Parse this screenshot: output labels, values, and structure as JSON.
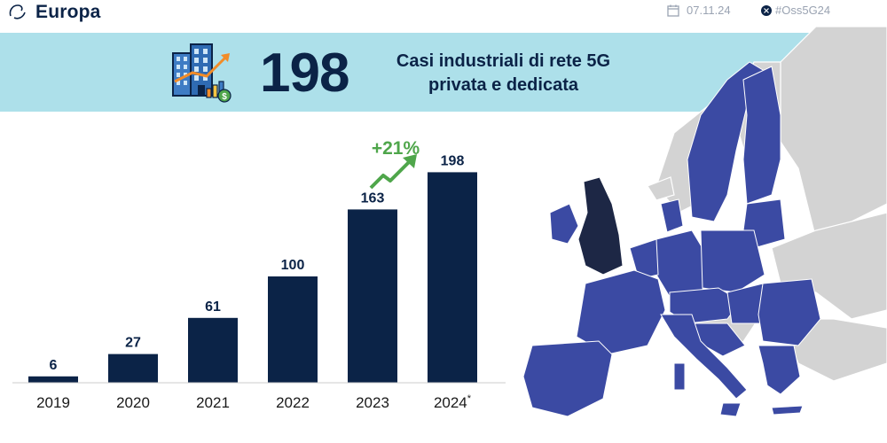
{
  "header": {
    "title": "Europa",
    "date": "07.11.24",
    "hashtag": "#Oss5G24"
  },
  "banner": {
    "number": "198",
    "line1": "Casi industriali di rete 5G",
    "line2": "privata e dedicata"
  },
  "colors": {
    "navy": "#0b2347",
    "banner_bg": "#ade0ea",
    "growth_green": "#4fa64b",
    "eu_blue": "#3b4aa3",
    "uk_navy": "#1d2745",
    "land_grey": "#d3d3d3"
  },
  "chart_data": {
    "type": "bar",
    "categories": [
      "2019",
      "2020",
      "2021",
      "2022",
      "2023",
      "2024"
    ],
    "category_marks": [
      "",
      "",
      "",
      "",
      "",
      "*"
    ],
    "values": [
      6,
      27,
      61,
      100,
      163,
      198
    ],
    "ylim": [
      0,
      210
    ],
    "grid": false,
    "annotations": [
      {
        "text": "+21%",
        "between": [
          "2023",
          "2024"
        ]
      }
    ]
  },
  "map": {
    "regions": [
      {
        "name": "eu",
        "color": "#3b4aa3"
      },
      {
        "name": "uk",
        "color": "#1d2745"
      },
      {
        "name": "other",
        "color": "#d3d3d3"
      }
    ]
  }
}
